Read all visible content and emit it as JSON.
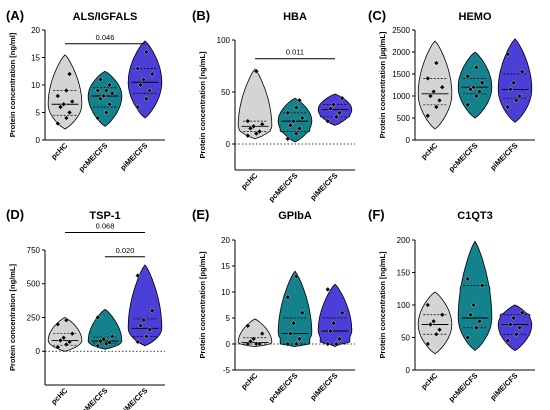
{
  "colors": {
    "pcHC": "#d4d4d4",
    "pcME/CFS": "#14828c",
    "piME/CFS": "#4b3fd8",
    "axis": "#000000",
    "point": "#000000"
  },
  "chart_data": [
    {
      "type": "violin",
      "label": "(A)",
      "title": "ALS/IGFALS",
      "ylabel": "Protein concentration [ng/ml]",
      "ylim": [
        0,
        20
      ],
      "yticks": [
        0,
        5,
        10,
        15,
        20
      ],
      "zero_line": false,
      "categories": [
        "pcHC",
        "pcME/CFS",
        "piME/CFS"
      ],
      "series": [
        {
          "min": 2,
          "max": 15.5,
          "q1": 4.5,
          "median": 6.5,
          "q3": 9,
          "points": [
            3,
            4,
            5,
            6,
            6.5,
            7,
            8,
            9,
            12
          ]
        },
        {
          "min": 2.5,
          "max": 12.5,
          "q1": 6,
          "median": 8,
          "q3": 9.5,
          "points": [
            4,
            5,
            6.5,
            7.5,
            8,
            8.5,
            9,
            9,
            10,
            11
          ]
        },
        {
          "min": 4,
          "max": 18,
          "q1": 8.5,
          "median": 10.5,
          "q3": 13,
          "points": [
            6,
            7.5,
            9,
            10,
            11,
            12,
            13,
            16
          ]
        }
      ],
      "significance": [
        {
          "from": 0,
          "to": 2,
          "y": 17.5,
          "label": "0.046"
        }
      ]
    },
    {
      "type": "violin",
      "label": "(B)",
      "title": "HBA",
      "ylabel": "Protein concentration [ng/mL]",
      "ylim": [
        -25,
        100
      ],
      "yticks": [
        0,
        50,
        100
      ],
      "zero_line": true,
      "categories": [
        "pcHC",
        "pcME/CFS",
        "piME/CFS"
      ],
      "series": [
        {
          "min": 5,
          "max": 72,
          "q1": 12,
          "median": 17,
          "q3": 22,
          "points": [
            8,
            10,
            12,
            15,
            17,
            19,
            22,
            70
          ]
        },
        {
          "min": 2,
          "max": 44,
          "q1": 12,
          "median": 22,
          "q3": 30,
          "points": [
            5,
            10,
            15,
            18,
            22,
            25,
            30,
            35,
            42
          ]
        },
        {
          "min": 18,
          "max": 48,
          "q1": 26,
          "median": 33,
          "q3": 38,
          "points": [
            22,
            26,
            30,
            34,
            38,
            44
          ]
        }
      ],
      "significance": [
        {
          "from": 0,
          "to": 2,
          "y": 82,
          "label": "0.011"
        }
      ]
    },
    {
      "type": "violin",
      "label": "(C)",
      "title": "HEMO",
      "ylabel": "Protein concentration [µg/mL]",
      "ylim": [
        0,
        2500
      ],
      "yticks": [
        0,
        500,
        1000,
        1500,
        2000,
        2500
      ],
      "zero_line": false,
      "categories": [
        "pcHC",
        "pcME/CFS",
        "piME/CFS"
      ],
      "series": [
        {
          "min": 250,
          "max": 2250,
          "q1": 800,
          "median": 1050,
          "q3": 1400,
          "points": [
            550,
            750,
            900,
            1000,
            1100,
            1200,
            1400,
            1750
          ]
        },
        {
          "min": 500,
          "max": 2000,
          "q1": 1050,
          "median": 1200,
          "q3": 1400,
          "points": [
            800,
            1000,
            1100,
            1150,
            1200,
            1300,
            1450,
            1650
          ]
        },
        {
          "min": 400,
          "max": 2300,
          "q1": 950,
          "median": 1150,
          "q3": 1500,
          "points": [
            750,
            900,
            1000,
            1150,
            1300,
            1550,
            1950
          ]
        }
      ],
      "significance": []
    },
    {
      "type": "violin",
      "label": "(D)",
      "title": "TSP-1",
      "ylabel": "Protein concentration [ng/mL]",
      "ylim": [
        -250,
        750
      ],
      "yticks": [
        0,
        250,
        500,
        750
      ],
      "ytick_labels": [
        "0",
        "250",
        "500",
        "750"
      ],
      "zero_line": true,
      "categories": [
        "pcHC",
        "pcME/CFS",
        "piME/CFS"
      ],
      "series": [
        {
          "min": 0,
          "max": 250,
          "q1": 45,
          "median": 80,
          "q3": 130,
          "points": [
            30,
            50,
            70,
            80,
            100,
            130,
            200,
            230
          ]
        },
        {
          "min": 15,
          "max": 310,
          "q1": 55,
          "median": 75,
          "q3": 105,
          "points": [
            40,
            55,
            65,
            75,
            90,
            110,
            250
          ]
        },
        {
          "min": 40,
          "max": 640,
          "q1": 110,
          "median": 170,
          "q3": 240,
          "points": [
            70,
            110,
            160,
            190,
            230,
            300,
            560
          ]
        }
      ],
      "significance": [
        {
          "from": 0,
          "to": 2,
          "y": 880,
          "label": "0.068"
        },
        {
          "from": 1,
          "to": 2,
          "y": 700,
          "label": "0.020"
        }
      ]
    },
    {
      "type": "violin",
      "label": "(E)",
      "title": "GPIbA",
      "ylabel": "Protein concentration [pg/mL]",
      "ylim": [
        -5,
        20
      ],
      "yticks": [
        -5,
        0,
        5,
        10,
        15,
        20
      ],
      "zero_line": true,
      "categories": [
        "pcHC",
        "pcME/CFS",
        "piME/CFS"
      ],
      "series": [
        {
          "min": -0.5,
          "max": 4.8,
          "q1": 0,
          "median": 0.3,
          "q3": 1.2,
          "points": [
            0,
            0,
            0,
            0.5,
            1,
            2,
            3.5
          ]
        },
        {
          "min": -0.5,
          "max": 14,
          "q1": 0,
          "median": 2,
          "q3": 5,
          "points": [
            0,
            0,
            1,
            2,
            4,
            6,
            9,
            13
          ]
        },
        {
          "min": -0.5,
          "max": 11.5,
          "q1": 0,
          "median": 2.5,
          "q3": 5,
          "points": [
            0,
            0,
            1,
            2.5,
            4,
            6,
            10.5
          ]
        }
      ],
      "significance": []
    },
    {
      "type": "violin",
      "label": "(F)",
      "title": "C1QT3",
      "ylabel": "Protein concentration [ng/mL]",
      "ylim": [
        0,
        200
      ],
      "yticks": [
        0,
        50,
        100,
        150,
        200
      ],
      "zero_line": false,
      "categories": [
        "pcHC",
        "pcME/CFS",
        "piME/CFS"
      ],
      "series": [
        {
          "min": 25,
          "max": 120,
          "q1": 55,
          "median": 70,
          "q3": 85,
          "points": [
            40,
            55,
            62,
            70,
            75,
            85,
            100
          ]
        },
        {
          "min": 30,
          "max": 198,
          "q1": 65,
          "median": 80,
          "q3": 130,
          "points": [
            50,
            65,
            75,
            85,
            100,
            130,
            140
          ]
        },
        {
          "min": 30,
          "max": 100,
          "q1": 55,
          "median": 70,
          "q3": 85,
          "points": [
            45,
            55,
            65,
            70,
            80,
            88
          ]
        }
      ],
      "significance": []
    }
  ]
}
